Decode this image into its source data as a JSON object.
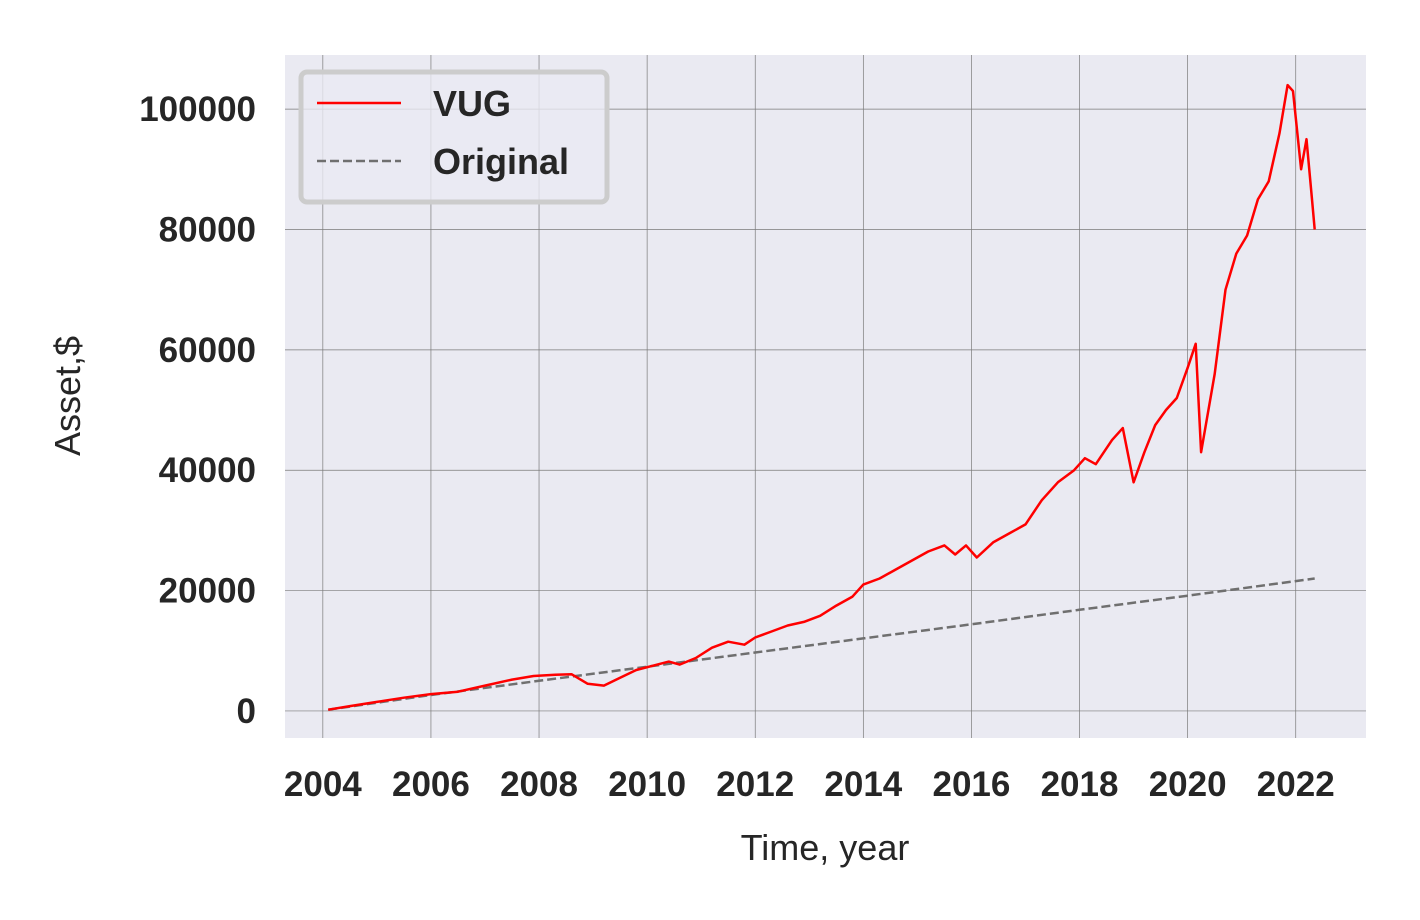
{
  "chart_data": {
    "type": "line",
    "title": "",
    "xlabel": "Time, year",
    "ylabel": "Asset,$",
    "xlim": [
      2003.3,
      2023.3
    ],
    "ylim": [
      -4500,
      109000
    ],
    "xticks": [
      2004,
      2006,
      2008,
      2010,
      2012,
      2014,
      2016,
      2018,
      2020,
      2022
    ],
    "xtick_labels": [
      "2004",
      "2006",
      "2008",
      "2010",
      "2012",
      "2014",
      "2016",
      "2018",
      "2020",
      "2022"
    ],
    "yticks": [
      0,
      20000,
      40000,
      60000,
      80000,
      100000
    ],
    "ytick_labels": [
      "0",
      "20000",
      "40000",
      "60000",
      "80000",
      "100000"
    ],
    "grid": true,
    "legend_position": "top-left",
    "background": "#eaeaf2",
    "series": [
      {
        "name": "VUG",
        "color": "#ff0000",
        "style": "solid",
        "x": [
          2004.1,
          2004.5,
          2005.0,
          2005.5,
          2006.0,
          2006.5,
          2007.0,
          2007.5,
          2007.9,
          2008.3,
          2008.6,
          2008.9,
          2009.2,
          2009.5,
          2009.8,
          2010.1,
          2010.4,
          2010.6,
          2010.9,
          2011.2,
          2011.5,
          2011.8,
          2012.0,
          2012.3,
          2012.6,
          2012.9,
          2013.2,
          2013.5,
          2013.8,
          2014.0,
          2014.3,
          2014.6,
          2014.9,
          2015.2,
          2015.5,
          2015.7,
          2015.9,
          2016.1,
          2016.4,
          2016.7,
          2017.0,
          2017.3,
          2017.6,
          2017.9,
          2018.1,
          2018.3,
          2018.6,
          2018.8,
          2019.0,
          2019.2,
          2019.4,
          2019.6,
          2019.8,
          2020.0,
          2020.15,
          2020.25,
          2020.5,
          2020.7,
          2020.9,
          2021.1,
          2021.3,
          2021.5,
          2021.7,
          2021.85,
          2021.95,
          2022.1,
          2022.2,
          2022.3,
          2022.35
        ],
        "y": [
          200,
          800,
          1500,
          2200,
          2800,
          3200,
          4200,
          5200,
          5800,
          6000,
          6100,
          4500,
          4200,
          5500,
          6800,
          7500,
          8200,
          7700,
          8800,
          10500,
          11500,
          11000,
          12200,
          13200,
          14200,
          14800,
          15800,
          17500,
          19000,
          21000,
          22000,
          23500,
          25000,
          26500,
          27500,
          26000,
          27500,
          25500,
          28000,
          29500,
          31000,
          35000,
          38000,
          40000,
          42000,
          41000,
          45000,
          47000,
          38000,
          43000,
          47500,
          50000,
          52000,
          57000,
          61000,
          43000,
          56000,
          70000,
          76000,
          79000,
          85000,
          88000,
          96000,
          104000,
          103000,
          90000,
          95000,
          85000,
          80000
        ]
      },
      {
        "name": "Original",
        "color": "#6f6f6f",
        "style": "dashed",
        "x": [
          2004.1,
          2006.0,
          2008.0,
          2010.0,
          2012.0,
          2014.0,
          2016.0,
          2018.0,
          2020.0,
          2022.35
        ],
        "y": [
          200,
          2650,
          5000,
          7350,
          9700,
          12050,
          14400,
          16800,
          19150,
          22000
        ]
      }
    ]
  }
}
